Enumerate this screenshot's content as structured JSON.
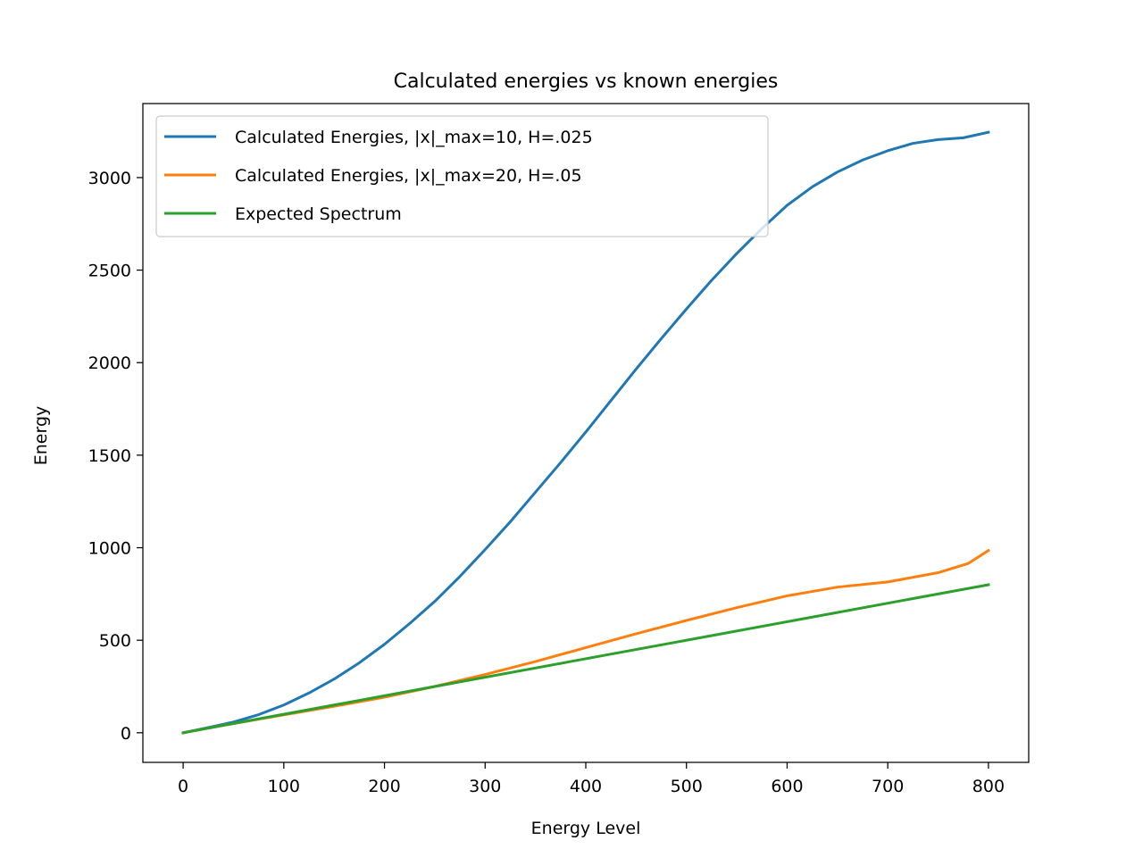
{
  "chart_data": {
    "type": "line",
    "title": "Calculated energies vs known energies",
    "xlabel": "Energy Level",
    "ylabel": "Energy",
    "xlim": [
      -40,
      840
    ],
    "ylim": [
      -160,
      3400
    ],
    "xticks": [
      0,
      100,
      200,
      300,
      400,
      500,
      600,
      700,
      800
    ],
    "yticks": [
      0,
      500,
      1000,
      1500,
      2000,
      2500,
      3000
    ],
    "grid": false,
    "legend_position": "top-left",
    "series": [
      {
        "name": "Calculated Energies, |x|_max=10, H=.025",
        "color": "#1f77b4",
        "x": [
          0,
          25,
          50,
          75,
          100,
          125,
          150,
          175,
          200,
          225,
          250,
          275,
          300,
          325,
          350,
          375,
          400,
          425,
          450,
          475,
          500,
          525,
          550,
          575,
          600,
          625,
          650,
          675,
          700,
          725,
          750,
          775,
          800
        ],
        "y": [
          0,
          28,
          58,
          98,
          150,
          215,
          290,
          378,
          478,
          590,
          710,
          845,
          990,
          1140,
          1300,
          1460,
          1625,
          1795,
          1965,
          2130,
          2290,
          2445,
          2590,
          2725,
          2850,
          2950,
          3030,
          3095,
          3145,
          3185,
          3205,
          3215,
          3245
        ]
      },
      {
        "name": "Calculated Energies, |x|_max=20, H=.05",
        "color": "#ff7f0e",
        "x": [
          0,
          50,
          100,
          150,
          200,
          250,
          300,
          350,
          400,
          450,
          500,
          550,
          600,
          650,
          700,
          750,
          780,
          800
        ],
        "y": [
          0,
          50,
          97,
          143,
          192,
          250,
          315,
          385,
          460,
          535,
          607,
          676,
          740,
          787,
          815,
          865,
          915,
          985
        ]
      },
      {
        "name": "Expected Spectrum",
        "color": "#2ca02c",
        "x": [
          0,
          800
        ],
        "y": [
          0,
          800
        ]
      }
    ]
  }
}
